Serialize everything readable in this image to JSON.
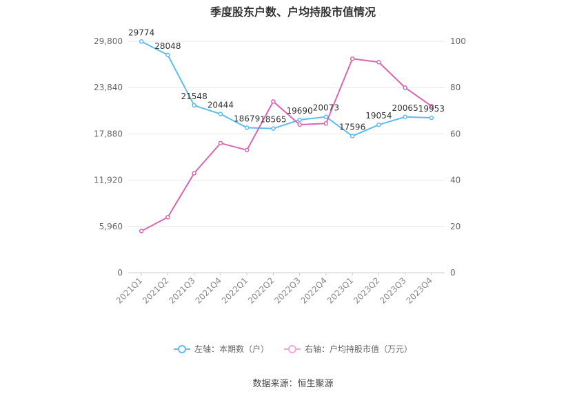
{
  "title": "季度股东户数、户均持股市值情况",
  "source": "数据来源：恒生聚源",
  "chart_data": {
    "type": "line",
    "categories": [
      "2021Q1",
      "2021Q2",
      "2021Q3",
      "2021Q4",
      "2022Q1",
      "2022Q2",
      "2022Q3",
      "2022Q4",
      "2023Q1",
      "2023Q2",
      "2023Q3",
      "2023Q4"
    ],
    "series": [
      {
        "name": "左轴：本期数（户）",
        "axis": "left",
        "color": "#5bbdf0",
        "values": [
          29774,
          28048,
          21548,
          20444,
          18679,
          18565,
          19690,
          20073,
          17596,
          19054,
          20065,
          19953
        ],
        "labels": [
          "29774",
          "28048",
          "21548",
          "20444",
          "18679",
          "18565",
          "19690",
          "20073",
          "17596",
          "19054",
          "20065",
          "19953"
        ]
      },
      {
        "name": "右轴：户均持股市值（万元）",
        "axis": "right",
        "color": "#d966b2",
        "values": [
          18,
          24,
          43,
          56,
          53,
          74,
          64,
          64.5,
          92.5,
          91,
          80,
          72
        ]
      }
    ],
    "left_axis": {
      "ticks": [
        "0",
        "5,960",
        "11,920",
        "17,880",
        "23,840",
        "29,800"
      ],
      "ylim": [
        0,
        29800
      ]
    },
    "right_axis": {
      "ticks": [
        "0",
        "20",
        "40",
        "60",
        "80",
        "100"
      ],
      "ylim": [
        0,
        100
      ]
    },
    "grid": true,
    "legend_position": "bottom"
  }
}
